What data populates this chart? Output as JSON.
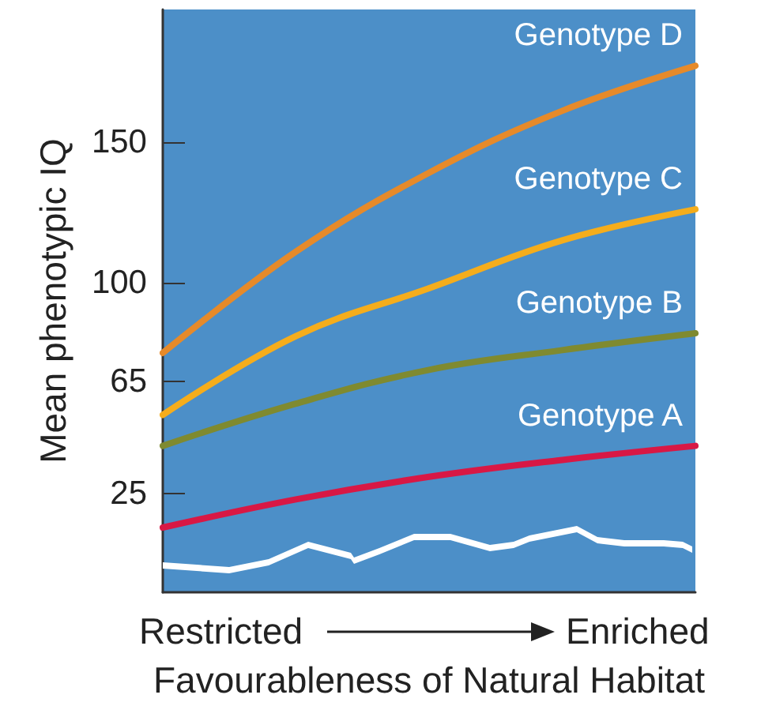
{
  "chart_data": {
    "type": "line",
    "xlabel": "Favourableness of Natural Habitat",
    "ylabel": "Mean phenotypic IQ",
    "categories": [
      null,
      null,
      null,
      null,
      null
    ],
    "annotations": [
      "Restricted",
      "Enriched"
    ],
    "series": [
      {
        "name": "Genotype D",
        "color": "#e68a2a",
        "values": [
          75,
          111,
          139,
          161,
          177
        ]
      },
      {
        "name": "Genotype C",
        "color": "#f5ad1c",
        "values": [
          53,
          81,
          98,
          115,
          126
        ]
      },
      {
        "name": "Genotype B",
        "color": "#7f8a30",
        "values": [
          42,
          57,
          69,
          76,
          82
        ]
      },
      {
        "name": "Genotype A",
        "color": "#d81845",
        "values": [
          13,
          23,
          31,
          37,
          42
        ]
      }
    ],
    "ylim": [
      -10,
      197
    ],
    "yticks": [
      25,
      65,
      100,
      150
    ],
    "grid": false,
    "legend": false,
    "marker": "none",
    "line_style": "solid"
  }
}
